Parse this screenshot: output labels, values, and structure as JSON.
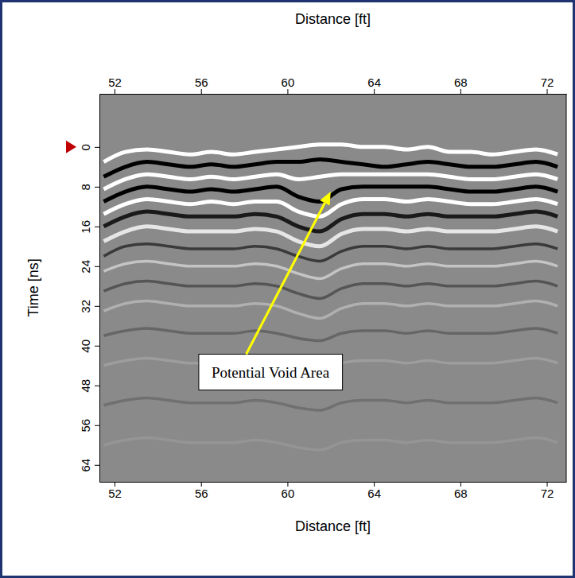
{
  "chart_data": {
    "type": "radargram",
    "xlabel": "Distance [ft]",
    "x2label": "Distance [ft]",
    "ylabel": "Time [ns]",
    "xlim": [
      51.3,
      72.9
    ],
    "ylim": [
      -10.7,
      67.4
    ],
    "xticks": [
      52,
      56,
      60,
      64,
      68,
      72
    ],
    "yticks": [
      0,
      8,
      16,
      24,
      32,
      40,
      48,
      56,
      64
    ],
    "time_zero": 0,
    "annotations": [
      {
        "text": "Potential Void Area",
        "x": 62,
        "y": 9
      }
    ],
    "x": [
      51.5,
      52.5,
      53.5,
      54.5,
      55.5,
      56.5,
      57.5,
      58.5,
      59.5,
      60.5,
      61.5,
      62.5,
      63.5,
      64.5,
      65.5,
      66.5,
      67.5,
      68.5,
      69.5,
      70.5,
      71.5,
      72.5
    ],
    "series": [
      {
        "color": "#ffffff",
        "values": [
          3,
          1,
          0.5,
          1,
          1.5,
          1,
          1.5,
          1,
          0.5,
          0,
          -0.5,
          -0.5,
          0,
          0,
          0.5,
          0,
          1,
          1,
          1.5,
          1,
          0.5,
          1.5
        ]
      },
      {
        "color": "#000000",
        "values": [
          6,
          4,
          3,
          3.5,
          4,
          3.5,
          4,
          3.5,
          3,
          3,
          2.5,
          3,
          3.5,
          4,
          3.5,
          3,
          3.5,
          4,
          4,
          3.5,
          3,
          4
        ]
      },
      {
        "color": "#ffffff",
        "values": [
          8.5,
          6.5,
          5.5,
          6,
          6.5,
          6,
          6.5,
          6,
          5.5,
          6.5,
          6,
          5.5,
          5.5,
          5.5,
          5.5,
          5.5,
          6,
          6.5,
          6.5,
          6,
          5.5,
          6.5
        ]
      },
      {
        "color": "#000000",
        "values": [
          11,
          9,
          8,
          8.5,
          9,
          8.5,
          9,
          8.5,
          8,
          10,
          11,
          8.5,
          8,
          8,
          8,
          8,
          8.5,
          9,
          9,
          8.5,
          8,
          9
        ]
      },
      {
        "color": "#ffffff",
        "values": [
          13.5,
          11.5,
          10.5,
          11,
          11.5,
          11,
          11.5,
          11,
          11,
          13,
          14,
          11.5,
          10.5,
          10.5,
          11,
          10.5,
          11,
          11.5,
          11.5,
          11,
          10.5,
          11.5
        ]
      },
      {
        "color": "#1a1a1a",
        "values": [
          16,
          14,
          13,
          13.5,
          14,
          14,
          14,
          13.5,
          14,
          16,
          17,
          14.5,
          13.5,
          13.5,
          14,
          13.5,
          14,
          14,
          14,
          13.5,
          13,
          14
        ]
      },
      {
        "color": "#e6e6e6",
        "values": [
          19,
          17,
          16,
          16.5,
          17,
          17,
          17,
          16.5,
          17,
          19,
          20,
          17.5,
          16.5,
          16.5,
          17,
          16.5,
          17,
          17,
          17,
          16.5,
          16,
          17
        ]
      },
      {
        "color": "#3a3a3a",
        "values": [
          22,
          20,
          19.5,
          20,
          20.5,
          20.5,
          20.5,
          20,
          20.5,
          22,
          23,
          21,
          20,
          20,
          20.5,
          20,
          20.5,
          20.5,
          20.5,
          20,
          19.5,
          20.5
        ]
      },
      {
        "color": "#c4c4c4",
        "values": [
          25,
          23.5,
          23,
          23.5,
          24,
          24,
          24,
          23.5,
          24,
          25.5,
          26.5,
          24.5,
          23.5,
          23.5,
          24,
          23.5,
          24,
          24,
          24,
          23.5,
          23,
          24
        ]
      },
      {
        "color": "#555555",
        "values": [
          29,
          27.5,
          27,
          27.5,
          28,
          28,
          28,
          27.5,
          28,
          29.5,
          30.5,
          28.5,
          27.5,
          27.5,
          28,
          27.5,
          28,
          28,
          28,
          27.5,
          27,
          28
        ]
      },
      {
        "color": "#b0b0b0",
        "values": [
          33,
          31.5,
          31,
          31.5,
          32,
          32,
          32,
          31.5,
          32,
          33.5,
          34.5,
          32.5,
          31.5,
          31.5,
          32,
          31.5,
          32,
          32,
          32,
          31.5,
          31,
          32
        ]
      },
      {
        "color": "#666666",
        "values": [
          38,
          37,
          36.5,
          37,
          37.5,
          37.5,
          37.5,
          37,
          37.5,
          38.5,
          39,
          37.5,
          37,
          37,
          37.5,
          37,
          37.5,
          37.5,
          37.5,
          37,
          36.5,
          37.5
        ]
      },
      {
        "color": "#9d9d9d",
        "values": [
          44,
          43,
          42.5,
          43,
          43.5,
          43.5,
          43.5,
          43,
          43.5,
          44.5,
          45,
          43.5,
          43,
          43,
          43.5,
          43,
          43.5,
          43.5,
          43.5,
          43,
          42.5,
          43.5
        ]
      },
      {
        "color": "#707070",
        "values": [
          52,
          51,
          50.5,
          51,
          51.5,
          51.5,
          51.5,
          51,
          51.5,
          52.5,
          53,
          51.5,
          51,
          51,
          51.5,
          51,
          51.5,
          51.5,
          51.5,
          51,
          50.5,
          51.5
        ]
      },
      {
        "color": "#959595",
        "values": [
          60,
          59,
          58.5,
          59,
          59.5,
          59.5,
          59.5,
          59,
          59.5,
          60.5,
          61,
          59.5,
          59,
          59,
          59.5,
          59,
          59.5,
          59.5,
          59.5,
          59,
          58.5,
          59.5
        ]
      }
    ]
  }
}
